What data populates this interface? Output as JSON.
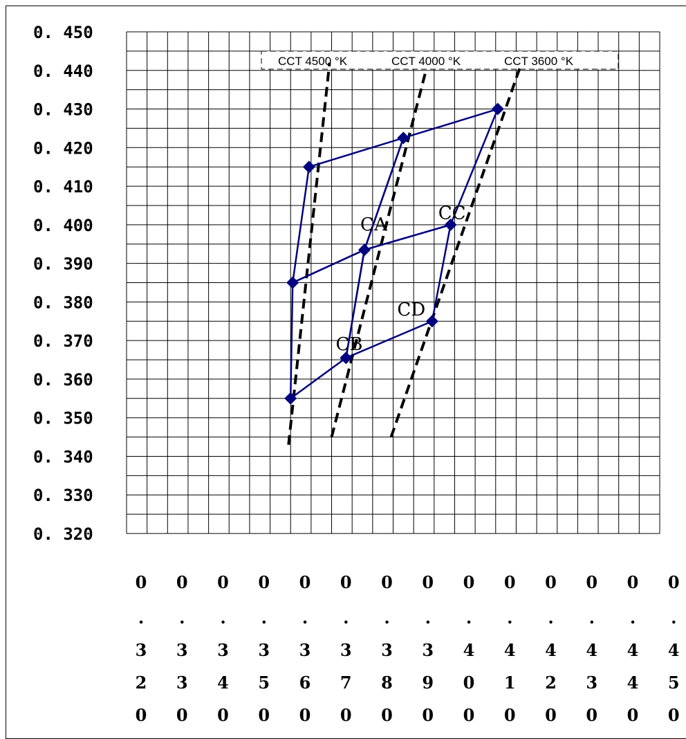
{
  "chart_data": {
    "type": "scatter",
    "title": "",
    "xlabel": "",
    "ylabel": "",
    "xlim": [
      0.32,
      0.45
    ],
    "ylim": [
      0.32,
      0.45
    ],
    "x_ticks": [
      "0.320",
      "0.330",
      "0.340",
      "0.350",
      "0.360",
      "0.370",
      "0.380",
      "0.390",
      "0.400",
      "0.410",
      "0.420",
      "0.430",
      "0.440",
      "0.450"
    ],
    "y_ticks": [
      "0.450",
      "0.440",
      "0.430",
      "0.420",
      "0.410",
      "0.400",
      "0.390",
      "0.380",
      "0.370",
      "0.360",
      "0.350",
      "0.340",
      "0.330",
      "0.320"
    ],
    "grid": true,
    "cct_lines": [
      {
        "label": "CCT 4500 °K",
        "points": [
          [
            0.3595,
            0.343
          ],
          [
            0.3695,
            0.442
          ]
        ]
      },
      {
        "label": "CCT 4000 °K",
        "points": [
          [
            0.37,
            0.345
          ],
          [
            0.393,
            0.44
          ]
        ]
      },
      {
        "label": "CCT 3600 °K",
        "points": [
          [
            0.3845,
            0.345
          ],
          [
            0.416,
            0.441
          ]
        ]
      }
    ],
    "bins": [
      {
        "name": "CA",
        "label_at": [
          0.377,
          0.3985
        ],
        "points": [
          [
            0.3645,
            0.415
          ],
          [
            0.3875,
            0.4225
          ],
          [
            0.378,
            0.3935
          ],
          [
            0.3605,
            0.385
          ]
        ]
      },
      {
        "name": "CB",
        "label_at": [
          0.371,
          0.3675
        ],
        "points": [
          [
            0.3605,
            0.385
          ],
          [
            0.378,
            0.3935
          ],
          [
            0.3735,
            0.3655
          ],
          [
            0.36,
            0.355
          ]
        ]
      },
      {
        "name": "CC",
        "label_at": [
          0.396,
          0.4015
        ],
        "points": [
          [
            0.3875,
            0.4225
          ],
          [
            0.4105,
            0.43
          ],
          [
            0.399,
            0.4
          ],
          [
            0.378,
            0.3935
          ]
        ]
      },
      {
        "name": "CD",
        "label_at": [
          0.386,
          0.3765
        ],
        "points": [
          [
            0.378,
            0.3935
          ],
          [
            0.399,
            0.4
          ],
          [
            0.3945,
            0.375
          ],
          [
            0.3735,
            0.3655
          ]
        ]
      }
    ],
    "markers": [
      [
        0.3645,
        0.415
      ],
      [
        0.3875,
        0.4225
      ],
      [
        0.4105,
        0.43
      ],
      [
        0.3605,
        0.385
      ],
      [
        0.378,
        0.3935
      ],
      [
        0.399,
        0.4
      ],
      [
        0.36,
        0.355
      ],
      [
        0.3735,
        0.3655
      ],
      [
        0.3945,
        0.375
      ]
    ],
    "colors": {
      "bins": "#000080",
      "cct": "#000000",
      "grid": "#000000"
    }
  }
}
